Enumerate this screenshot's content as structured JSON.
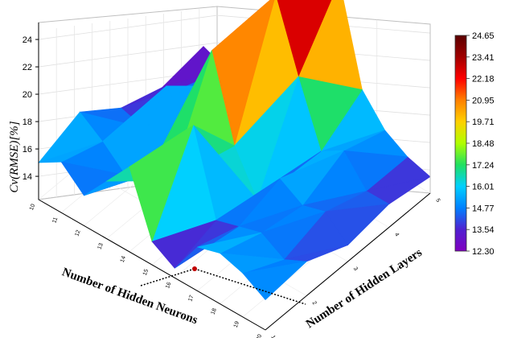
{
  "chart_data": {
    "type": "surface3d",
    "title": "",
    "xlabel": "Number of Hidden Neurons",
    "ylabel": "Number of Hidden Layers",
    "zlabel": "Cv(RMSE)[%]",
    "x_ticks": [
      "10",
      "11",
      "12",
      "13",
      "14",
      "15",
      "16",
      "17",
      "18",
      "19",
      "20"
    ],
    "y_ticks": [
      "1",
      "2",
      "3",
      "4",
      "5"
    ],
    "z_ticks": [
      "14",
      "16",
      "18",
      "20",
      "22",
      "24"
    ],
    "zlim": [
      12.3,
      24.65
    ],
    "grid": true,
    "colorbar": {
      "position": "right",
      "labels": [
        "24.65",
        "23.41",
        "22.18",
        "20.95",
        "19.71",
        "18.48",
        "17.24",
        "16.01",
        "14.77",
        "13.54",
        "12.30"
      ],
      "colors": [
        "#5a0000",
        "#a00000",
        "#ff0000",
        "#ff8000",
        "#ffd000",
        "#b0ff00",
        "#20e060",
        "#00d0ff",
        "#0080ff",
        "#5020d0",
        "#8000c0"
      ]
    },
    "neurons": [
      10,
      11,
      12,
      13,
      14,
      15,
      16,
      17,
      18,
      19,
      20
    ],
    "layers": [
      1,
      2,
      3,
      4,
      5
    ],
    "z_values": [
      [
        15.0,
        16.0,
        14.5,
        16.5,
        18.5,
        14.0,
        13.0,
        15.5,
        16.0,
        15.5,
        14.5
      ],
      [
        16.2,
        15.0,
        13.5,
        14.5,
        15.0,
        20.0,
        14.0,
        14.5,
        15.0,
        14.0,
        14.8
      ],
      [
        14.0,
        13.5,
        17.5,
        15.0,
        22.0,
        16.0,
        13.0,
        15.5,
        14.5,
        15.0,
        13.5
      ],
      [
        13.0,
        14.0,
        15.0,
        13.5,
        17.0,
        24.5,
        19.5,
        15.0,
        16.0,
        14.0,
        14.0
      ],
      [
        13.5,
        12.8,
        14.5,
        16.0,
        13.0,
        15.0,
        24.0,
        17.0,
        15.0,
        14.0,
        13.5
      ]
    ]
  }
}
